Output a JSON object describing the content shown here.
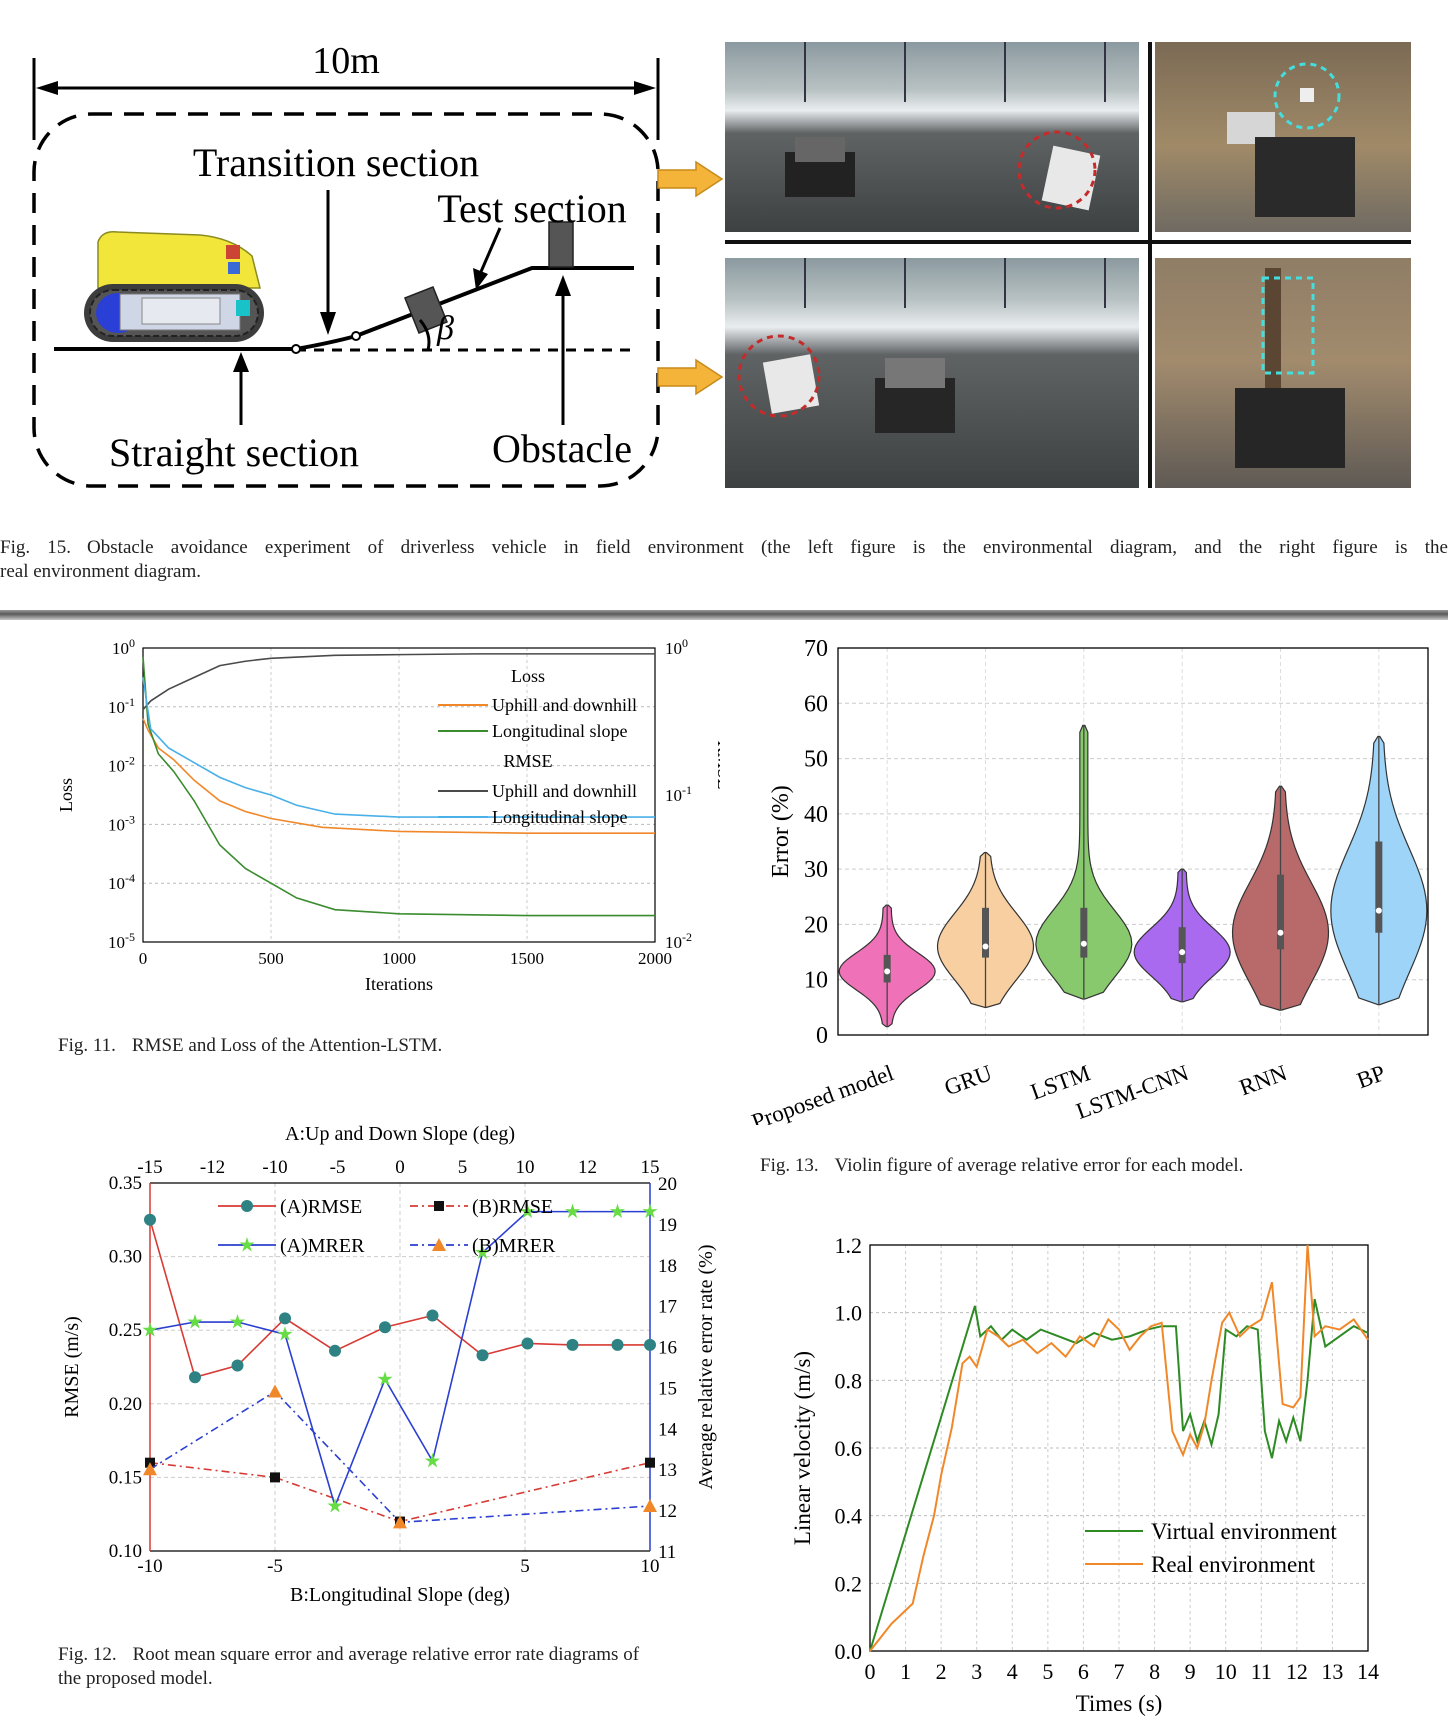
{
  "fig15": {
    "diagram": {
      "width_label": "10m",
      "transition": "Transition section",
      "test": "Test section",
      "straight": "Straight section",
      "obstacle": "Obstacle",
      "angle": "β"
    },
    "caption_label": "Fig. 15.",
    "caption_line1": "Obstacle avoidance experiment of driverless vehicle in field environment (the left figure is the environmental diagram, and the right figure is the",
    "caption_line2": "real environment diagram."
  },
  "fig11": {
    "caption_label": "Fig. 11.",
    "caption_text": "RMSE and Loss of the Attention-LSTM."
  },
  "fig12": {
    "caption_label": "Fig. 12.",
    "caption_line1": "Root mean square error and average relative error rate diagrams of",
    "caption_line2": "the proposed model."
  },
  "fig13": {
    "caption_label": "Fig. 13.",
    "caption_text": "Violin figure of average relative error for each model."
  },
  "chart_data": [
    {
      "id": "fig11",
      "type": "line",
      "xlabel": "Iterations",
      "ylabel": "Loss",
      "y2label": "RMSE",
      "xlim": [
        0,
        2000
      ],
      "xticks": [
        "0",
        "500",
        "1000",
        "1500",
        "2000"
      ],
      "ylim_log10": [
        -5,
        0
      ],
      "yticks": [
        "10^0",
        "10^-1",
        "10^-2",
        "10^-3",
        "10^-4",
        "10^-5"
      ],
      "y2lim_log10": [
        -2,
        0
      ],
      "y2ticks": [
        "10^-2",
        "10^-1",
        "10^0"
      ],
      "legend": {
        "loss_title": "Loss",
        "rmse_title": "RMSE",
        "uphill": "Uphill and downhill",
        "longitudinal": "Longitudinal slope"
      },
      "series": [
        {
          "name": "Uphill and downhill",
          "group": "Loss",
          "color": "#f0882a",
          "x": [
            0,
            20,
            60,
            120,
            200,
            300,
            400,
            500,
            700,
            1000,
            1500,
            2000
          ],
          "log10": [
            -1.2,
            -1.4,
            -1.7,
            -1.9,
            -2.25,
            -2.6,
            -2.78,
            -2.9,
            -3.05,
            -3.12,
            -3.15,
            -3.15
          ]
        },
        {
          "name": "Longitudinal slope",
          "group": "Loss",
          "color": "#3a8c2e",
          "x": [
            0,
            20,
            60,
            120,
            200,
            300,
            400,
            500,
            600,
            750,
            1000,
            1500,
            2000
          ],
          "log10": [
            -0.15,
            -1.3,
            -1.8,
            -2.1,
            -2.6,
            -3.35,
            -3.75,
            -4.0,
            -4.25,
            -4.45,
            -4.52,
            -4.55,
            -4.55
          ]
        },
        {
          "name": "Uphill and downhill",
          "group": "RMSE",
          "color": "#4a4a4a",
          "x": [
            0,
            30,
            100,
            200,
            300,
            400,
            500,
            750,
            1000,
            1300,
            1500,
            2000
          ],
          "log10": [
            -0.42,
            -0.36,
            -0.28,
            -0.2,
            -0.12,
            -0.09,
            -0.07,
            -0.05,
            -0.045,
            -0.04,
            -0.04,
            -0.04
          ]
        },
        {
          "name": "Longitudinal slope",
          "group": "RMSE",
          "color": "#49b0e8",
          "x": [
            0,
            30,
            100,
            200,
            300,
            400,
            500,
            600,
            750,
            1000,
            1500,
            2000
          ],
          "log10": [
            -0.2,
            -0.55,
            -0.68,
            -0.78,
            -0.88,
            -0.95,
            -1.0,
            -1.07,
            -1.13,
            -1.15,
            -1.15,
            -1.15
          ]
        }
      ]
    },
    {
      "id": "fig12",
      "type": "line",
      "top_xlabel": "A:Up and Down Slope (deg)",
      "top_x": [
        -15,
        -12,
        -10,
        -5,
        0,
        5,
        10,
        12,
        15
      ],
      "xlabel": "B:Longitudinal Slope (deg)",
      "xlim": [
        -10,
        10
      ],
      "xticks": [
        "-10",
        "-5",
        "5",
        "10"
      ],
      "ylabel": "RMSE (m/s)",
      "ylim": [
        0.1,
        0.35
      ],
      "yticks": [
        "0.35",
        "0.30",
        "0.25",
        "0.20",
        "0.15",
        "0.10"
      ],
      "y2label": "Average relative error rate (%)",
      "y2lim": [
        11,
        20
      ],
      "y2ticks": [
        "20",
        "19",
        "18",
        "17",
        "16",
        "15",
        "14",
        "13",
        "12",
        "11"
      ],
      "series": [
        {
          "name": "(A)RMSE",
          "axis": "left",
          "color": "#d83a34",
          "marker": "circle",
          "x": [
            -10,
            -8.2,
            -6.5,
            -4.6,
            -2.6,
            -0.6,
            1.3,
            3.3,
            5.1,
            6.9,
            8.7,
            10
          ],
          "values": [
            0.325,
            0.218,
            0.226,
            0.258,
            0.236,
            0.252,
            0.26,
            0.233,
            0.241,
            0.24,
            0.24,
            0.24
          ]
        },
        {
          "name": "(B)RMSE",
          "axis": "left",
          "color": "#d83a34",
          "marker": "square",
          "x": [
            -10,
            -5,
            0,
            10
          ],
          "values": [
            0.16,
            0.15,
            0.12,
            0.16
          ]
        },
        {
          "name": "(A)MRER",
          "axis": "right",
          "color": "#2b3fd0",
          "marker": "star",
          "x": [
            -10,
            -8.2,
            -6.5,
            -4.6,
            -2.6,
            -0.6,
            1.3,
            3.3,
            5.1,
            6.9,
            8.7,
            10
          ],
          "values": [
            16.4,
            16.6,
            16.6,
            16.3,
            12.1,
            15.2,
            13.2,
            18.3,
            19.3,
            19.3,
            19.3,
            19.3
          ]
        },
        {
          "name": "(B)MRER",
          "axis": "right",
          "color": "#2b3fd0",
          "marker": "triangle",
          "x": [
            -10,
            -5,
            0,
            10
          ],
          "values": [
            13.0,
            14.9,
            11.7,
            12.1
          ]
        }
      ]
    },
    {
      "id": "fig13",
      "type": "violin",
      "ylabel": "Error (%)",
      "ylim": [
        0,
        70
      ],
      "yticks": [
        "70",
        "60",
        "50",
        "40",
        "30",
        "20",
        "10",
        "0"
      ],
      "categories": [
        "Proposed model",
        "GRU",
        "LSTM",
        "LSTM-CNN",
        "RNN",
        "BP"
      ],
      "colors": [
        "#ef72b8",
        "#f7cfa0",
        "#87c96c",
        "#a96af0",
        "#b86a6a",
        "#9dd4f7"
      ],
      "min": [
        1.5,
        5.0,
        6.5,
        6.0,
        4.5,
        5.5
      ],
      "max": [
        23.5,
        33.0,
        56.0,
        30.0,
        45.0,
        54.0
      ],
      "median": [
        11.5,
        16.0,
        16.5,
        15.0,
        18.5,
        22.5
      ],
      "q1": [
        9.5,
        14.0,
        14.0,
        13.0,
        15.5,
        18.5
      ],
      "q3": [
        14.5,
        23.0,
        23.0,
        19.5,
        29.0,
        35.0
      ]
    },
    {
      "id": "fig14",
      "type": "line",
      "xlabel": "Times (s)",
      "ylabel": "Linear velocity (m/s)",
      "xlim": [
        0,
        14
      ],
      "xticks": [
        "0",
        "1",
        "2",
        "3",
        "4",
        "5",
        "6",
        "7",
        "8",
        "9",
        "10",
        "11",
        "12",
        "13",
        "14"
      ],
      "ylim": [
        0,
        1.2
      ],
      "yticks": [
        "1.2",
        "1.0",
        "0.8",
        "0.6",
        "0.4",
        "0.2",
        "0.0"
      ],
      "series": [
        {
          "name": "Virtual environment",
          "color": "#2e8b24",
          "x": [
            0,
            2.95,
            3.1,
            3.4,
            3.7,
            4.0,
            4.4,
            4.8,
            5.3,
            5.8,
            6.3,
            6.8,
            7.3,
            7.8,
            8.2,
            8.6,
            8.8,
            9.0,
            9.2,
            9.4,
            9.6,
            9.8,
            10.0,
            10.3,
            10.6,
            10.9,
            11.1,
            11.3,
            11.5,
            11.7,
            11.9,
            12.1,
            12.3,
            12.5,
            12.8,
            13.2,
            13.6,
            14.0
          ],
          "values": [
            0.0,
            1.02,
            0.93,
            0.96,
            0.92,
            0.95,
            0.92,
            0.95,
            0.93,
            0.91,
            0.94,
            0.92,
            0.93,
            0.95,
            0.96,
            0.96,
            0.65,
            0.7,
            0.62,
            0.68,
            0.61,
            0.7,
            0.95,
            0.93,
            0.96,
            0.95,
            0.65,
            0.57,
            0.68,
            0.62,
            0.69,
            0.62,
            0.8,
            1.04,
            0.9,
            0.93,
            0.96,
            0.94
          ]
        },
        {
          "name": "Real environment",
          "color": "#f0882a",
          "x": [
            0,
            0.3,
            0.6,
            0.9,
            1.2,
            1.5,
            1.8,
            2.0,
            2.3,
            2.6,
            2.8,
            3.0,
            3.3,
            3.6,
            3.9,
            4.3,
            4.7,
            5.1,
            5.5,
            5.9,
            6.3,
            6.7,
            7.0,
            7.3,
            7.6,
            7.9,
            8.2,
            8.5,
            8.8,
            9.0,
            9.2,
            9.4,
            9.6,
            9.9,
            10.1,
            10.4,
            10.7,
            11.0,
            11.3,
            11.6,
            11.9,
            12.1,
            12.3,
            12.5,
            12.8,
            13.2,
            13.6,
            14.0
          ],
          "values": [
            0.0,
            0.04,
            0.08,
            0.11,
            0.14,
            0.28,
            0.4,
            0.52,
            0.66,
            0.85,
            0.87,
            0.84,
            0.95,
            0.93,
            0.9,
            0.92,
            0.88,
            0.91,
            0.87,
            0.93,
            0.9,
            0.98,
            0.95,
            0.89,
            0.93,
            0.96,
            0.97,
            0.65,
            0.58,
            0.64,
            0.6,
            0.67,
            0.8,
            0.97,
            1.0,
            0.93,
            0.96,
            0.98,
            1.09,
            0.73,
            0.72,
            0.75,
            1.2,
            0.93,
            0.96,
            0.95,
            0.98,
            0.92
          ]
        }
      ]
    }
  ]
}
